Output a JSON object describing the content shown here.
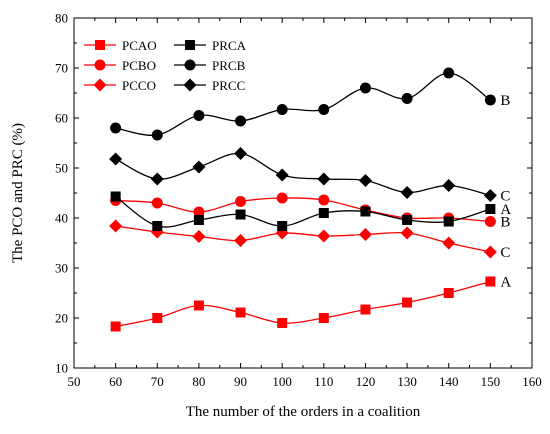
{
  "chart_data": {
    "type": "line",
    "title": "",
    "xlabel": "The number of the orders in a coalition",
    "ylabel": "The PCO and PRC (%)",
    "xlim": [
      50,
      160
    ],
    "ylim": [
      10,
      80
    ],
    "xticks": [
      "50",
      "60",
      "70",
      "80",
      "90",
      "100",
      "110",
      "120",
      "130",
      "140",
      "150",
      "160"
    ],
    "yticks": [
      "10",
      "20",
      "30",
      "40",
      "50",
      "60",
      "70",
      "80"
    ],
    "grid": false,
    "legend_position": "top-left",
    "x": [
      60,
      70,
      80,
      90,
      100,
      110,
      120,
      130,
      140,
      150
    ],
    "series": [
      {
        "name": "PCAO",
        "color": "#ff0000",
        "marker": "square",
        "end_label": "A",
        "values": [
          18.3,
          20.0,
          22.5,
          21.1,
          19.0,
          20.0,
          21.7,
          23.1,
          25.0,
          27.3
        ]
      },
      {
        "name": "PCBO",
        "color": "#ff0000",
        "marker": "circle",
        "end_label": "B",
        "values": [
          43.5,
          43.0,
          41.2,
          43.3,
          44.0,
          43.6,
          41.6,
          40.0,
          40.0,
          39.3
        ]
      },
      {
        "name": "PCCO",
        "color": "#ff0000",
        "marker": "diamond",
        "end_label": "C",
        "values": [
          38.4,
          37.2,
          36.3,
          35.5,
          37.0,
          36.4,
          36.7,
          37.0,
          35.0,
          33.2
        ]
      },
      {
        "name": "PRCA",
        "color": "#000000",
        "marker": "square",
        "end_label": "A",
        "values": [
          44.3,
          38.4,
          39.6,
          40.7,
          38.4,
          41.0,
          41.3,
          39.6,
          39.3,
          41.8
        ]
      },
      {
        "name": "PRCB",
        "color": "#000000",
        "marker": "circle",
        "end_label": "B",
        "values": [
          58.0,
          56.6,
          60.5,
          59.4,
          61.7,
          61.7,
          66.0,
          63.9,
          69.0,
          63.6
        ]
      },
      {
        "name": "PRCC",
        "color": "#000000",
        "marker": "diamond",
        "end_label": "C",
        "values": [
          51.8,
          47.8,
          50.2,
          52.9,
          48.6,
          47.8,
          47.5,
          45.1,
          46.5,
          44.5
        ]
      }
    ]
  }
}
